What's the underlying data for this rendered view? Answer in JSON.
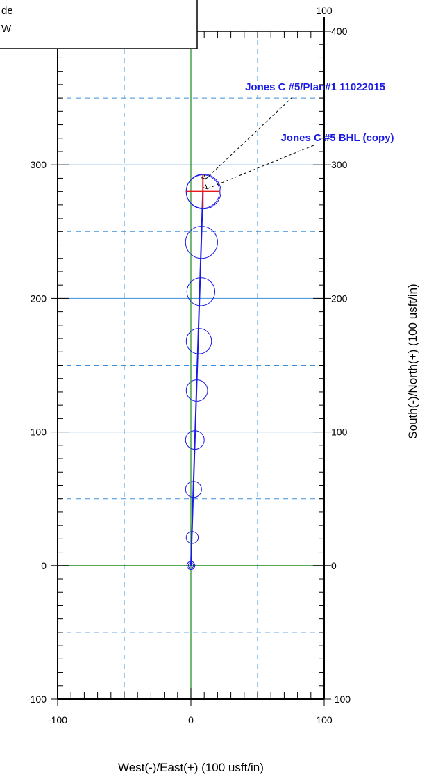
{
  "chart_data": {
    "type": "scatter",
    "title": "",
    "xlabel": "West(-)/East(+) (100 usft/in)",
    "ylabel": "South(-)/North(+) (100 usft/in)",
    "xlim": [
      -100,
      100
    ],
    "ylim": [
      -100,
      400
    ],
    "x_ticks": [
      -100,
      0,
      100
    ],
    "y_ticks": [
      -100,
      0,
      100,
      200,
      300
    ],
    "top_ticks": [
      100
    ],
    "right_ticks": [
      -100,
      0,
      100,
      200,
      300,
      400
    ],
    "grid": true,
    "legend_box": {
      "lines": [
        "de",
        "W"
      ],
      "placement": "top-left"
    },
    "wellpath": {
      "points": [
        {
          "x": 0,
          "y": 0
        },
        {
          "x": 9,
          "y": 280
        }
      ]
    },
    "uncertainty_ellipses": [
      {
        "x": 0,
        "y": 0,
        "r": 3
      },
      {
        "x": 0,
        "y": 0,
        "r": 2
      },
      {
        "x": 1,
        "y": 21,
        "r": 4.5
      },
      {
        "x": 2,
        "y": 57,
        "r": 6
      },
      {
        "x": 3,
        "y": 94,
        "r": 7
      },
      {
        "x": 4.5,
        "y": 131,
        "r": 8
      },
      {
        "x": 6,
        "y": 168,
        "r": 9.5
      },
      {
        "x": 7.5,
        "y": 205,
        "r": 10.5
      },
      {
        "x": 8,
        "y": 242,
        "r": 12
      },
      {
        "x": 9,
        "y": 280,
        "r": 12.5
      },
      {
        "x": 9.5,
        "y": 280,
        "r": 13
      }
    ],
    "target": {
      "x": 9,
      "y": 280,
      "color": "#e61a1a"
    },
    "annotations": [
      {
        "text": "Jones C #5/Plan#1 11022015",
        "point": {
          "x": 9,
          "y": 280
        }
      },
      {
        "text": "Jones C #5 BHL (copy)",
        "point": {
          "x": 9,
          "y": 280
        }
      }
    ],
    "colors": {
      "wellpath": "#1a1ae6",
      "grid_solid": "#3d8fd8",
      "grid_dashed": "#3d8fd8",
      "axis_zero": "#1a8a1a",
      "target": "#e61a1a",
      "annotation": "#1a1ae6"
    }
  }
}
